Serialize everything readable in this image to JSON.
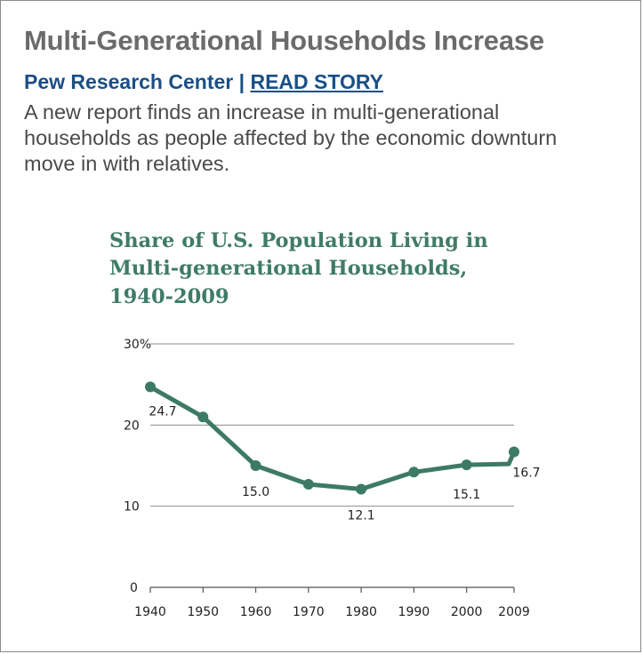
{
  "article": {
    "headline": "Multi-Generational Households Increase",
    "source": "Pew Research Center",
    "separator": " | ",
    "link_label": "READ STORY",
    "summary": "A new report finds an increase in multi-generational households as people affected by the economic downturn move in with relatives."
  },
  "colors": {
    "line": "#3d7a66",
    "title": "#3f7b69",
    "headline": "#6b6b6b",
    "link": "#1a4f86"
  },
  "chart_data": {
    "type": "line",
    "title_lines": [
      "Share of U.S. Population Living in",
      "Multi-generational Households,",
      "1940-2009"
    ],
    "x": [
      1940,
      1950,
      1960,
      1970,
      1980,
      1990,
      2000,
      2008,
      2009
    ],
    "x_ticks": [
      "1940",
      "1950",
      "1960",
      "1970",
      "1980",
      "1990",
      "2000",
      "2009"
    ],
    "series": [
      {
        "values": [
          24.7,
          21.0,
          15.0,
          12.7,
          12.1,
          14.2,
          15.1,
          15.2,
          16.7
        ]
      }
    ],
    "data_labels": [
      {
        "x": 1940,
        "text": "24.7"
      },
      {
        "x": 1960,
        "text": "15.0"
      },
      {
        "x": 1980,
        "text": "12.1"
      },
      {
        "x": 2000,
        "text": "15.1"
      },
      {
        "x": 2009,
        "text": "16.7"
      }
    ],
    "y_ticks": [
      {
        "value": 0,
        "label": "0"
      },
      {
        "value": 10,
        "label": "10"
      },
      {
        "value": 20,
        "label": "20"
      },
      {
        "value": 30,
        "label": "30%"
      }
    ],
    "ylim": [
      0,
      30
    ],
    "xlim": [
      1940,
      2009
    ],
    "grid": true
  }
}
